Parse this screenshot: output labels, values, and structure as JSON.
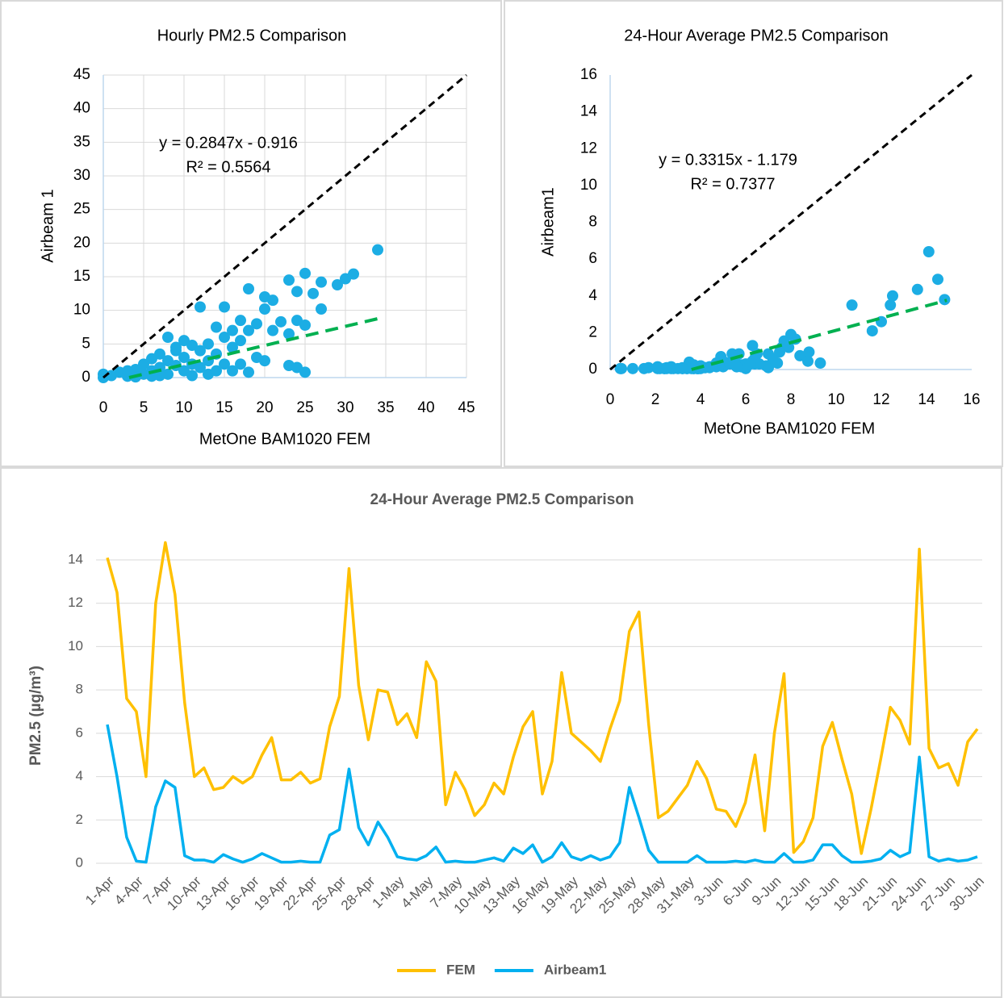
{
  "chart_data": [
    {
      "type": "scatter",
      "title": "Hourly PM2.5 Comparison",
      "x_label": "MetOne BAM1020 FEM",
      "y_label": "Airbeam 1",
      "annotations": [
        "y = 0.2847x - 0.916",
        "R² = 0.5564"
      ],
      "color": "#1cade4",
      "grid": true,
      "xlim": [
        0,
        45
      ],
      "ylim": [
        0,
        45
      ],
      "xticks": [
        0,
        5,
        10,
        15,
        20,
        25,
        30,
        35,
        40,
        45
      ],
      "yticks": [
        0,
        5,
        10,
        15,
        20,
        25,
        30,
        35,
        40,
        45
      ],
      "x": [
        0,
        0,
        1,
        2,
        3,
        4,
        5,
        5,
        6,
        6,
        7,
        7,
        8,
        8,
        8,
        9,
        9,
        9,
        10,
        10,
        10,
        11,
        11,
        11,
        12,
        12,
        12,
        13,
        13,
        13,
        14,
        14,
        14,
        15,
        15,
        15,
        16,
        16,
        16,
        17,
        17,
        17,
        18,
        18,
        18,
        19,
        19,
        20,
        20,
        20,
        21,
        21,
        22,
        23,
        23,
        23,
        24,
        24,
        24,
        25,
        25,
        25,
        26,
        27,
        27,
        29,
        30,
        31,
        34,
        3,
        4,
        6,
        7
      ],
      "y": [
        0.5,
        0,
        0.3,
        0.8,
        0.2,
        1.2,
        2,
        0.5,
        2.8,
        1,
        3.5,
        1.5,
        6,
        2.5,
        0.5,
        4,
        1.8,
        4.5,
        5.5,
        3,
        1,
        4.8,
        2,
        0.3,
        10.5,
        4,
        1.5,
        5,
        2.5,
        0.5,
        7.5,
        3.5,
        1,
        10.5,
        6,
        2,
        7,
        4.5,
        1,
        8.5,
        5.5,
        2,
        13.2,
        7,
        0.8,
        8,
        3,
        12,
        10.2,
        2.5,
        11.5,
        7,
        8.3,
        14.5,
        6.5,
        1.8,
        12.8,
        8.5,
        1.5,
        15.5,
        7.8,
        0.8,
        12.5,
        14.2,
        10.2,
        13.8,
        14.7,
        15.4,
        19,
        1,
        0.1,
        0.2,
        0.3
      ],
      "lines": [
        {
          "x": [
            0,
            45
          ],
          "y": [
            0,
            45
          ],
          "color": "#000000"
        },
        {
          "x": [
            3.2,
            34
          ],
          "y": [
            0,
            8.76
          ],
          "color": "#00b050"
        }
      ]
    },
    {
      "type": "scatter",
      "title": "24-Hour Average PM2.5 Comparison",
      "x_label": "MetOne BAM1020 FEM",
      "y_label": "Airbeam1",
      "annotations": [
        "y = 0.3315x - 1.179",
        "R² = 0.7377"
      ],
      "color": "#1cade4",
      "grid": false,
      "xlim": [
        0,
        16
      ],
      "ylim": [
        0,
        16
      ],
      "xticks": [
        0,
        2,
        4,
        6,
        8,
        10,
        12,
        14,
        16
      ],
      "yticks": [
        0,
        2,
        4,
        6,
        8,
        10,
        12,
        14,
        16
      ],
      "x": [
        14.1,
        12.5,
        7.6,
        7.0,
        4.0,
        12.0,
        14.8,
        12.4,
        7.4,
        4.0,
        4.4,
        3.4,
        3.5,
        4.0,
        3.7,
        4.0,
        5.0,
        5.8,
        3.85,
        3.85,
        4.2,
        3.7,
        3.9,
        6.3,
        7.7,
        13.6,
        8.2,
        5.7,
        8.0,
        7.9,
        6.4,
        6.9,
        5.8,
        9.3,
        8.4,
        2.7,
        4.2,
        3.4,
        2.2,
        2.7,
        3.7,
        3.2,
        4.9,
        6.3,
        7.0,
        3.2,
        4.7,
        8.8,
        6.0,
        5.6,
        5.2,
        4.7,
        6.2,
        7.5,
        10.7,
        11.6,
        6.4,
        2.1,
        2.4,
        3.0,
        3.6,
        4.7,
        3.9,
        2.5,
        2.4,
        1.7,
        2.8,
        5.0,
        1.5,
        6.0,
        8.75,
        0.5,
        1.0,
        2.1,
        5.4,
        6.5,
        4.8,
        3.2,
        0.45,
        2.5,
        4.8,
        7.2,
        6.6,
        5.5,
        14.5,
        5.3,
        4.4,
        4.6,
        3.6,
        5.6,
        6.2
      ],
      "y": [
        6.4,
        4.0,
        1.2,
        0.1,
        0.05,
        2.6,
        3.8,
        3.5,
        0.35,
        0.15,
        0.15,
        0.05,
        0.4,
        0.2,
        0.05,
        0.2,
        0.45,
        0.25,
        0.05,
        0.05,
        0.1,
        0.05,
        0.05,
        1.3,
        1.55,
        4.35,
        1.65,
        0.85,
        1.9,
        1.2,
        0.3,
        0.2,
        0.15,
        0.35,
        0.75,
        0.05,
        0.1,
        0.05,
        0.05,
        0.15,
        0.25,
        0.1,
        0.7,
        0.45,
        0.85,
        0.05,
        0.3,
        0.95,
        0.3,
        0.15,
        0.35,
        0.15,
        0.3,
        0.95,
        3.5,
        2.1,
        0.6,
        0.05,
        0.05,
        0.05,
        0.05,
        0.35,
        0.05,
        0.05,
        0.05,
        0.1,
        0.05,
        0.15,
        0.05,
        0.05,
        0.45,
        0.05,
        0.05,
        0.15,
        0.85,
        0.85,
        0.35,
        0.05,
        0.05,
        0.1,
        0.2,
        0.6,
        0.3,
        0.5,
        4.9,
        0.3,
        0.1,
        0.2,
        0.1,
        0.15,
        0.3
      ],
      "lines": [
        {
          "x": [
            0,
            16
          ],
          "y": [
            0,
            16
          ],
          "color": "#000000"
        },
        {
          "x": [
            3.6,
            14.9
          ],
          "y": [
            0,
            3.76
          ],
          "color": "#00b050"
        }
      ]
    },
    {
      "type": "line",
      "title": "24-Hour Average PM2.5 Comparison",
      "y_label": "PM2.5 (µg/m³)",
      "grid": true,
      "ylim": [
        0,
        14
      ],
      "yticks": [
        0,
        2,
        4,
        6,
        8,
        10,
        12,
        14
      ],
      "categories": [
        "1-Apr",
        null,
        null,
        "4-Apr",
        null,
        null,
        "7-Apr",
        null,
        null,
        "10-Apr",
        null,
        null,
        "13-Apr",
        null,
        null,
        "16-Apr",
        null,
        null,
        "19-Apr",
        null,
        null,
        "22-Apr",
        null,
        null,
        "25-Apr",
        null,
        null,
        "28-Apr",
        null,
        null,
        "1-May",
        null,
        null,
        "4-May",
        null,
        null,
        "7-May",
        null,
        null,
        "10-May",
        null,
        null,
        "13-May",
        null,
        null,
        "16-May",
        null,
        null,
        "19-May",
        null,
        null,
        "22-May",
        null,
        null,
        "25-May",
        null,
        null,
        "28-May",
        null,
        null,
        "31-May",
        null,
        null,
        "3-Jun",
        null,
        null,
        "6-Jun",
        null,
        null,
        "9-Jun",
        null,
        null,
        "12-Jun",
        null,
        null,
        "15-Jun",
        null,
        null,
        "18-Jun",
        null,
        null,
        "21-Jun",
        null,
        null,
        "24-Jun",
        null,
        null,
        "27-Jun",
        null,
        null,
        "30-Jun"
      ],
      "series": [
        {
          "name": "FEM",
          "color": "#ffc000",
          "values": [
            14.1,
            12.5,
            7.6,
            7.0,
            4.0,
            12.0,
            14.8,
            12.4,
            7.4,
            4.0,
            4.4,
            3.4,
            3.5,
            4.0,
            3.7,
            4.0,
            5.0,
            5.8,
            3.85,
            3.85,
            4.2,
            3.7,
            3.9,
            6.3,
            7.7,
            13.6,
            8.2,
            5.7,
            8.0,
            7.9,
            6.4,
            6.9,
            5.8,
            9.3,
            8.4,
            2.7,
            4.2,
            3.4,
            2.2,
            2.7,
            3.7,
            3.2,
            4.9,
            6.3,
            7.0,
            3.2,
            4.7,
            8.8,
            6.0,
            5.6,
            5.2,
            4.7,
            6.2,
            7.5,
            10.7,
            11.6,
            6.4,
            2.1,
            2.4,
            3.0,
            3.6,
            4.7,
            3.9,
            2.5,
            2.4,
            1.7,
            2.8,
            5.0,
            1.5,
            6.0,
            8.75,
            0.5,
            1.0,
            2.1,
            5.4,
            6.5,
            4.8,
            3.2,
            0.45,
            2.5,
            4.8,
            7.2,
            6.6,
            5.5,
            14.5,
            5.3,
            4.4,
            4.6,
            3.6,
            5.6,
            6.2
          ]
        },
        {
          "name": "Airbeam1",
          "color": "#00b0f0",
          "values": [
            6.4,
            4.0,
            1.2,
            0.1,
            0.05,
            2.6,
            3.8,
            3.5,
            0.35,
            0.15,
            0.15,
            0.05,
            0.4,
            0.2,
            0.05,
            0.2,
            0.45,
            0.25,
            0.05,
            0.05,
            0.1,
            0.05,
            0.05,
            1.3,
            1.55,
            4.35,
            1.65,
            0.85,
            1.9,
            1.2,
            0.3,
            0.2,
            0.15,
            0.35,
            0.75,
            0.05,
            0.1,
            0.05,
            0.05,
            0.15,
            0.25,
            0.1,
            0.7,
            0.45,
            0.85,
            0.05,
            0.3,
            0.95,
            0.3,
            0.15,
            0.35,
            0.15,
            0.3,
            0.95,
            3.5,
            2.1,
            0.6,
            0.05,
            0.05,
            0.05,
            0.05,
            0.35,
            0.05,
            0.05,
            0.05,
            0.1,
            0.05,
            0.15,
            0.05,
            0.05,
            0.45,
            0.05,
            0.05,
            0.15,
            0.85,
            0.85,
            0.35,
            0.05,
            0.05,
            0.1,
            0.2,
            0.6,
            0.3,
            0.5,
            4.9,
            0.3,
            0.1,
            0.2,
            0.1,
            0.15,
            0.3
          ]
        }
      ]
    }
  ]
}
